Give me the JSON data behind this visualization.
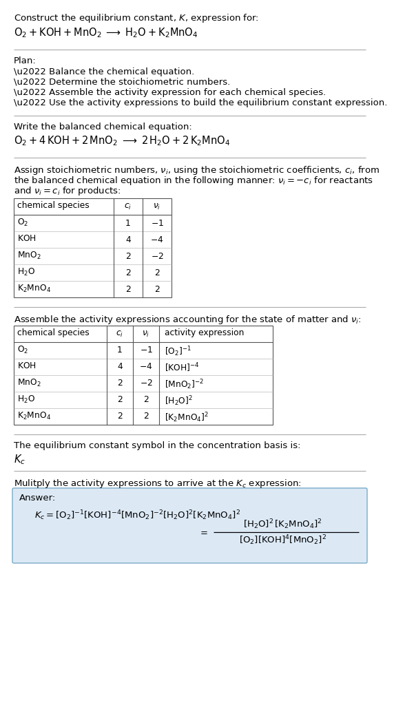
{
  "bg_color": "#ffffff",
  "text_color": "#000000",
  "title_line1": "Construct the equilibrium constant, $K$, expression for:",
  "reaction_unbalanced": "$\\mathrm{O_2 + KOH + MnO_2 \\;\\longrightarrow\\; H_2O + K_2MnO_4}$",
  "plan_header": "Plan:",
  "plan_items": [
    "\\u2022 Balance the chemical equation.",
    "\\u2022 Determine the stoichiometric numbers.",
    "\\u2022 Assemble the activity expression for each chemical species.",
    "\\u2022 Use the activity expressions to build the equilibrium constant expression."
  ],
  "balanced_header": "Write the balanced chemical equation:",
  "reaction_balanced": "$\\mathrm{O_2 + 4\\,KOH + 2\\,MnO_2 \\;\\longrightarrow\\; 2\\,H_2O + 2\\,K_2MnO_4}$",
  "stoich_header_lines": [
    "Assign stoichiometric numbers, $\\nu_i$, using the stoichiometric coefficients, $c_i$, from",
    "the balanced chemical equation in the following manner: $\\nu_i = -c_i$ for reactants",
    "and $\\nu_i = c_i$ for products:"
  ],
  "table1_cols": [
    "chemical species",
    "$c_i$",
    "$\\nu_i$"
  ],
  "table1_rows": [
    [
      "$\\mathrm{O_2}$",
      "1",
      "$-1$"
    ],
    [
      "$\\mathrm{KOH}$",
      "4",
      "$-4$"
    ],
    [
      "$\\mathrm{MnO_2}$",
      "2",
      "$-2$"
    ],
    [
      "$\\mathrm{H_2O}$",
      "2",
      "$2$"
    ],
    [
      "$\\mathrm{K_2MnO_4}$",
      "2",
      "$2$"
    ]
  ],
  "activity_header": "Assemble the activity expressions accounting for the state of matter and $\\nu_i$:",
  "table2_cols": [
    "chemical species",
    "$c_i$",
    "$\\nu_i$",
    "activity expression"
  ],
  "table2_rows": [
    [
      "$\\mathrm{O_2}$",
      "1",
      "$-1$",
      "$[\\mathrm{O_2}]^{-1}$"
    ],
    [
      "$\\mathrm{KOH}$",
      "4",
      "$-4$",
      "$[\\mathrm{KOH}]^{-4}$"
    ],
    [
      "$\\mathrm{MnO_2}$",
      "2",
      "$-2$",
      "$[\\mathrm{MnO_2}]^{-2}$"
    ],
    [
      "$\\mathrm{H_2O}$",
      "2",
      "$2$",
      "$[\\mathrm{H_2O}]^{2}$"
    ],
    [
      "$\\mathrm{K_2MnO_4}$",
      "2",
      "$2$",
      "$[\\mathrm{K_2MnO_4}]^{2}$"
    ]
  ],
  "kc_text": "The equilibrium constant symbol in the concentration basis is:",
  "kc_symbol": "$K_c$",
  "multiply_text": "Mulitply the activity expressions to arrive at the $K_c$ expression:",
  "answer_label": "Answer:",
  "answer_box_color": "#dce9f5",
  "answer_box_border": "#7aaac8",
  "font_size": 9.5,
  "font_size_small": 8.8,
  "font_size_reaction": 10.5
}
